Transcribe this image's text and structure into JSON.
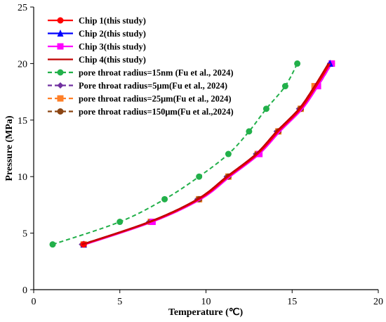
{
  "chart_data": {
    "type": "line",
    "title": "",
    "xlabel": "Temperature (℃)",
    "ylabel": "Pressure (MPa)",
    "xlim": [
      0,
      20
    ],
    "ylim": [
      0,
      25
    ],
    "xticks": [
      "0",
      "5",
      "10",
      "15",
      "20"
    ],
    "yticks": [
      "0",
      "5",
      "10",
      "15",
      "20",
      "25"
    ],
    "grid": false,
    "legend_position": "top-left",
    "series": [
      {
        "name": "Chip 1(this study)",
        "color": "#ff0000",
        "line": "solid",
        "marker": "circle",
        "marker_indices": [
          0
        ],
        "x": [
          2.9,
          6.8,
          9.6,
          11.3,
          13.0,
          14.2,
          15.5,
          16.4,
          17.2
        ],
        "y": [
          4,
          6,
          8,
          10,
          12,
          14,
          16,
          18,
          20
        ]
      },
      {
        "name": "Chip 2(this study)",
        "color": "#0000ff",
        "line": "solid",
        "marker": "triangle",
        "marker_indices": [
          0,
          8
        ],
        "x": [
          2.9,
          6.8,
          9.6,
          11.3,
          13.0,
          14.2,
          15.5,
          16.4,
          17.2
        ],
        "y": [
          4,
          6,
          8,
          10,
          12,
          14,
          16,
          18,
          20
        ]
      },
      {
        "name": "Chip 3(this study)",
        "color": "#ff00ff",
        "line": "solid",
        "marker": "square",
        "marker_indices": [
          1,
          4,
          7,
          8
        ],
        "x": [
          3.0,
          6.9,
          9.7,
          11.4,
          13.1,
          14.3,
          15.6,
          16.5,
          17.3
        ],
        "y": [
          4,
          6,
          8,
          10,
          12,
          14,
          16,
          18,
          20
        ]
      },
      {
        "name": "Chip 4(this study)",
        "color": "#c00000",
        "line": "solid",
        "marker": "none",
        "marker_indices": [],
        "x": [
          2.8,
          6.7,
          9.5,
          11.2,
          12.9,
          14.1,
          15.4,
          16.3,
          17.1
        ],
        "y": [
          4,
          6,
          8,
          10,
          12,
          14,
          16,
          18,
          20
        ]
      },
      {
        "name": "pore throat radius=15nm (Fu et al., 2024)",
        "color": "#22b04a",
        "line": "dashed",
        "marker": "circle",
        "marker_indices": [
          0,
          1,
          2,
          3,
          4,
          5,
          6,
          7,
          8
        ],
        "x": [
          1.1,
          5.0,
          7.6,
          9.6,
          11.3,
          12.5,
          13.5,
          14.6,
          15.3
        ],
        "y": [
          4,
          6,
          8,
          10,
          12,
          14,
          16,
          18,
          20
        ]
      },
      {
        "name": "Pore throat radius=5μm(Fu et al., 2024)",
        "color": "#7030a0",
        "line": "dashed",
        "marker": "diamond",
        "marker_indices": [
          0,
          1,
          2,
          3,
          4,
          5,
          6,
          7,
          8
        ],
        "x": [
          2.8,
          6.7,
          9.5,
          11.2,
          12.9,
          14.1,
          15.4,
          16.3,
          17.2
        ],
        "y": [
          4,
          6,
          8,
          10,
          12,
          14,
          16,
          18,
          20
        ]
      },
      {
        "name": "pore throat radius=25μm(Fu et al., 2024)",
        "color": "#ff7f27",
        "line": "dashed",
        "marker": "square",
        "marker_indices": [
          0,
          1,
          2,
          3,
          4,
          5,
          6,
          7,
          8
        ],
        "x": [
          2.9,
          6.8,
          9.6,
          11.3,
          13.0,
          14.2,
          15.5,
          16.3,
          17.3
        ],
        "y": [
          4,
          6,
          8,
          10,
          12,
          14,
          16,
          18,
          20
        ]
      },
      {
        "name": "pore throat radius=150μm(Fu et al.,2024)",
        "color": "#8b4513",
        "line": "dashed",
        "marker": "circle",
        "marker_indices": [
          0,
          1,
          2,
          3,
          4,
          5,
          6,
          7,
          8
        ],
        "x": [
          2.9,
          6.8,
          9.6,
          11.3,
          13.0,
          14.2,
          15.5,
          16.5,
          17.3
        ],
        "y": [
          4,
          6,
          8,
          10,
          12,
          14,
          16,
          18,
          20
        ]
      }
    ]
  }
}
